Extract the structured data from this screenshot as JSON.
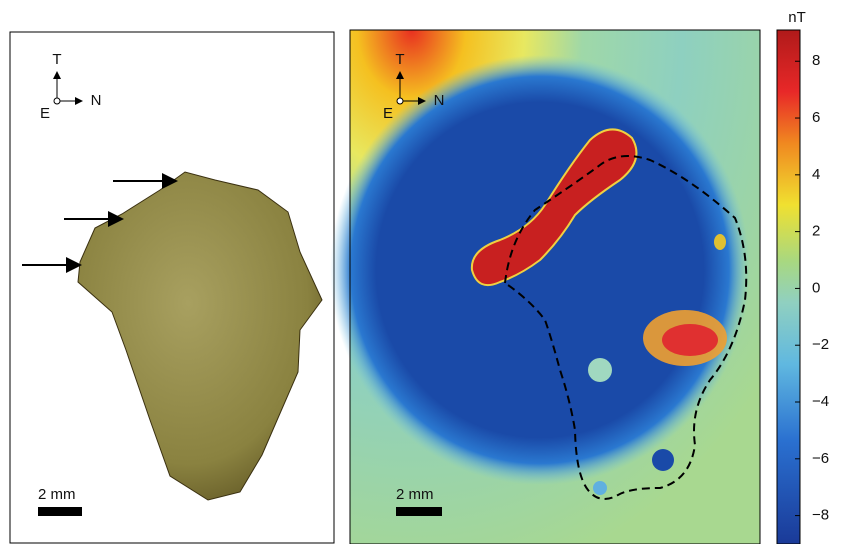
{
  "left_panel": {
    "compass": {
      "up": "T",
      "left": "E",
      "right": "N"
    },
    "scale_bar": "2 mm"
  },
  "right_panel": {
    "compass": {
      "up": "T",
      "left": "E",
      "right": "N"
    },
    "scale_bar": "2 mm"
  },
  "colorbar": {
    "unit": "nT",
    "lim": [
      -9,
      9.1
    ],
    "ticks": [
      8,
      6,
      4,
      2,
      0,
      {
        "value": -2,
        "label": "−2"
      },
      {
        "value": -4,
        "label": "−4"
      },
      {
        "value": -6,
        "label": "−6"
      },
      {
        "value": -8,
        "label": "−8"
      }
    ]
  }
}
